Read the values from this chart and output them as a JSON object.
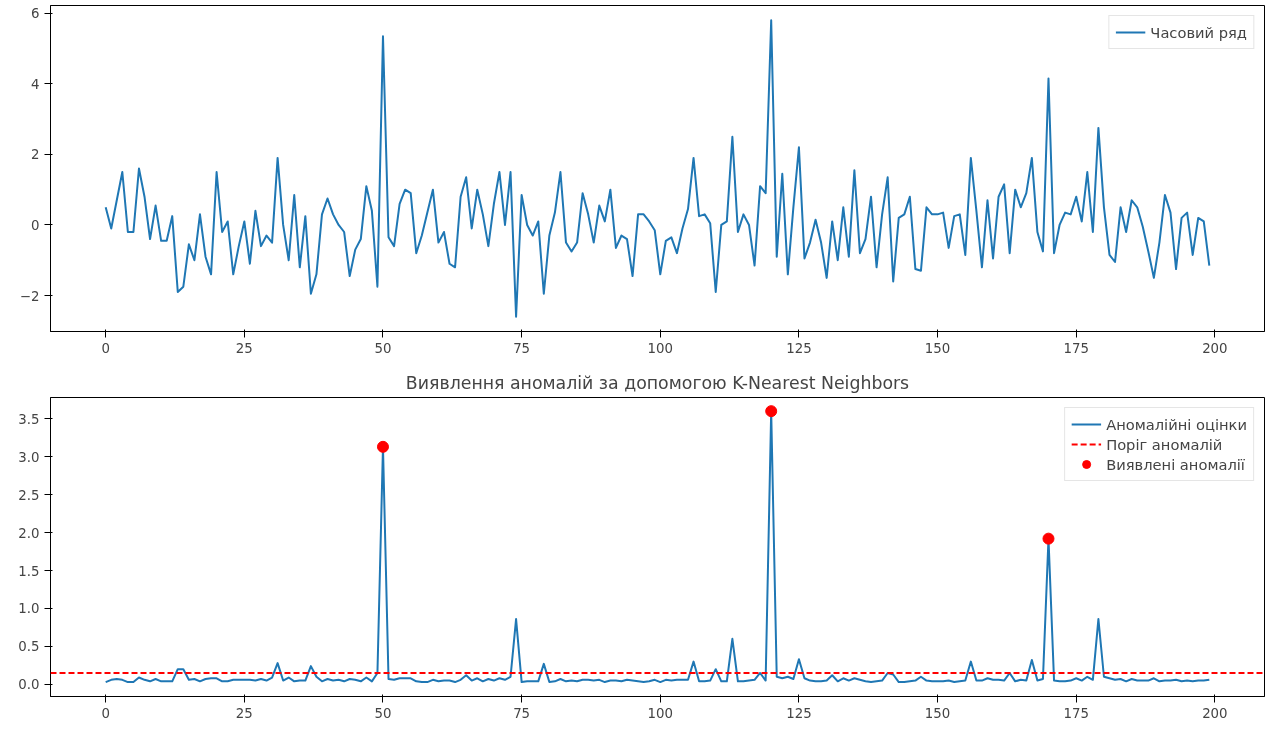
{
  "chart_data": [
    {
      "type": "line",
      "legend": "top right",
      "grid": false,
      "x": [
        0,
        1,
        2,
        3,
        4,
        5,
        6,
        7,
        8,
        9,
        10,
        11,
        12,
        13,
        14,
        15,
        16,
        17,
        18,
        19,
        20,
        21,
        22,
        23,
        24,
        25,
        26,
        27,
        28,
        29,
        30,
        31,
        32,
        33,
        34,
        35,
        36,
        37,
        38,
        39,
        40,
        41,
        42,
        43,
        44,
        45,
        46,
        47,
        48,
        49,
        50,
        51,
        52,
        53,
        54,
        55,
        56,
        57,
        58,
        59,
        60,
        61,
        62,
        63,
        64,
        65,
        66,
        67,
        68,
        69,
        70,
        71,
        72,
        73,
        74,
        75,
        76,
        77,
        78,
        79,
        80,
        81,
        82,
        83,
        84,
        85,
        86,
        87,
        88,
        89,
        90,
        91,
        92,
        93,
        94,
        95,
        96,
        97,
        98,
        99,
        100,
        101,
        102,
        103,
        104,
        105,
        106,
        107,
        108,
        109,
        110,
        111,
        112,
        113,
        114,
        115,
        116,
        117,
        118,
        119,
        120,
        121,
        122,
        123,
        124,
        125,
        126,
        127,
        128,
        129,
        130,
        131,
        132,
        133,
        134,
        135,
        136,
        137,
        138,
        139,
        140,
        141,
        142,
        143,
        144,
        145,
        146,
        147,
        148,
        149,
        150,
        151,
        152,
        153,
        154,
        155,
        156,
        157,
        158,
        159,
        160,
        161,
        162,
        163,
        164,
        165,
        166,
        167,
        168,
        169,
        170,
        171,
        172,
        173,
        174,
        175,
        176,
        177,
        178,
        179,
        180,
        181,
        182,
        183,
        184,
        185,
        186,
        187,
        188,
        189,
        190,
        191,
        192,
        193,
        194,
        195,
        196,
        197,
        198,
        199
      ],
      "series": [
        {
          "name": "Часовий ряд",
          "color": "#1f77b4",
          "values": [
            0.5,
            -0.1,
            0.7,
            1.5,
            -0.2,
            -0.2,
            1.6,
            0.8,
            -0.4,
            0.55,
            -0.45,
            -0.45,
            0.25,
            -1.9,
            -1.75,
            -0.55,
            -1.0,
            0.3,
            -0.9,
            -1.4,
            1.5,
            -0.2,
            0.1,
            -1.4,
            -0.6,
            0.1,
            -1.1,
            0.4,
            -0.6,
            -0.3,
            -0.5,
            1.9,
            0.0,
            -1.0,
            0.85,
            -1.2,
            0.25,
            -1.95,
            -1.4,
            0.3,
            0.75,
            0.3,
            0.0,
            -0.2,
            -1.45,
            -0.7,
            -0.4,
            1.1,
            0.4,
            -1.75,
            5.35,
            -0.35,
            -0.6,
            0.6,
            1.0,
            0.9,
            -0.8,
            -0.3,
            0.35,
            1.0,
            -0.5,
            -0.2,
            -1.1,
            -1.2,
            0.8,
            1.35,
            -0.1,
            1.0,
            0.3,
            -0.6,
            0.6,
            1.5,
            0.0,
            1.5,
            -2.6,
            0.85,
            0.0,
            -0.3,
            0.1,
            -1.95,
            -0.3,
            0.35,
            1.5,
            -0.5,
            -0.75,
            -0.5,
            0.9,
            0.3,
            -0.5,
            0.55,
            0.1,
            1.0,
            -0.65,
            -0.3,
            -0.4,
            -1.45,
            0.3,
            0.3,
            0.1,
            -0.15,
            -1.4,
            -0.45,
            -0.35,
            -0.8,
            -0.1,
            0.45,
            1.9,
            0.25,
            0.3,
            0.05,
            -1.9,
            0.0,
            0.1,
            2.5,
            -0.2,
            0.3,
            0.0,
            -1.15,
            1.1,
            0.9,
            5.8,
            -0.9,
            1.45,
            -1.4,
            0.5,
            2.2,
            -0.95,
            -0.5,
            0.15,
            -0.5,
            -1.5,
            0.1,
            -1.0,
            0.5,
            -0.9,
            1.55,
            -0.8,
            -0.4,
            0.8,
            -1.2,
            0.3,
            1.35,
            -1.6,
            0.2,
            0.3,
            0.8,
            -1.25,
            -1.3,
            0.5,
            0.3,
            0.3,
            0.35,
            -0.65,
            0.25,
            0.3,
            -0.85,
            1.9,
            0.4,
            -1.2,
            0.7,
            -0.95,
            0.8,
            1.15,
            -0.8,
            1.0,
            0.5,
            0.9,
            1.9,
            -0.2,
            -0.75,
            4.15,
            -0.8,
            0.0,
            0.35,
            0.3,
            0.8,
            0.1,
            1.5,
            -0.2,
            2.75,
            0.5,
            -0.85,
            -1.05,
            0.5,
            -0.2,
            0.7,
            0.5,
            -0.05,
            -0.75,
            -1.5,
            -0.5,
            0.85,
            0.35,
            -1.25,
            0.2,
            0.35,
            -0.85,
            0.2,
            0.1,
            -1.15
          ]
        }
      ],
      "xlim": [
        -9.95,
        208.95
      ],
      "xticks": [
        0,
        25,
        50,
        75,
        100,
        125,
        150,
        175,
        200
      ],
      "ylim": [
        -3.02,
        6.22
      ],
      "yticks": [
        -2,
        0,
        2,
        4,
        6
      ]
    },
    {
      "type": "line",
      "title": "Виявлення аномалій за допомогою K-Nearest Neighbors",
      "legend": "top right",
      "grid": false,
      "x": [
        0,
        1,
        2,
        3,
        4,
        5,
        6,
        7,
        8,
        9,
        10,
        11,
        12,
        13,
        14,
        15,
        16,
        17,
        18,
        19,
        20,
        21,
        22,
        23,
        24,
        25,
        26,
        27,
        28,
        29,
        30,
        31,
        32,
        33,
        34,
        35,
        36,
        37,
        38,
        39,
        40,
        41,
        42,
        43,
        44,
        45,
        46,
        47,
        48,
        49,
        50,
        51,
        52,
        53,
        54,
        55,
        56,
        57,
        58,
        59,
        60,
        61,
        62,
        63,
        64,
        65,
        66,
        67,
        68,
        69,
        70,
        71,
        72,
        73,
        74,
        75,
        76,
        77,
        78,
        79,
        80,
        81,
        82,
        83,
        84,
        85,
        86,
        87,
        88,
        89,
        90,
        91,
        92,
        93,
        94,
        95,
        96,
        97,
        98,
        99,
        100,
        101,
        102,
        103,
        104,
        105,
        106,
        107,
        108,
        109,
        110,
        111,
        112,
        113,
        114,
        115,
        116,
        117,
        118,
        119,
        120,
        121,
        122,
        123,
        124,
        125,
        126,
        127,
        128,
        129,
        130,
        131,
        132,
        133,
        134,
        135,
        136,
        137,
        138,
        139,
        140,
        141,
        142,
        143,
        144,
        145,
        146,
        147,
        148,
        149,
        150,
        151,
        152,
        153,
        154,
        155,
        156,
        157,
        158,
        159,
        160,
        161,
        162,
        163,
        164,
        165,
        166,
        167,
        168,
        169,
        170,
        171,
        172,
        173,
        174,
        175,
        176,
        177,
        178,
        179,
        180,
        181,
        182,
        183,
        184,
        185,
        186,
        187,
        188,
        189,
        190,
        191,
        192,
        193,
        194,
        195,
        196,
        197,
        198,
        199
      ],
      "series": [
        {
          "name": "Аномалійні оцінки",
          "color": "#1f77b4",
          "values": [
            0.03,
            0.06,
            0.07,
            0.06,
            0.03,
            0.03,
            0.09,
            0.06,
            0.04,
            0.07,
            0.04,
            0.04,
            0.04,
            0.2,
            0.2,
            0.06,
            0.07,
            0.04,
            0.07,
            0.08,
            0.08,
            0.04,
            0.04,
            0.06,
            0.06,
            0.06,
            0.06,
            0.05,
            0.07,
            0.05,
            0.09,
            0.28,
            0.05,
            0.09,
            0.04,
            0.05,
            0.05,
            0.24,
            0.1,
            0.04,
            0.07,
            0.05,
            0.06,
            0.04,
            0.07,
            0.06,
            0.04,
            0.09,
            0.04,
            0.15,
            3.13,
            0.07,
            0.06,
            0.08,
            0.08,
            0.08,
            0.04,
            0.03,
            0.03,
            0.06,
            0.04,
            0.05,
            0.05,
            0.03,
            0.06,
            0.12,
            0.05,
            0.08,
            0.04,
            0.07,
            0.05,
            0.08,
            0.06,
            0.1,
            0.86,
            0.03,
            0.04,
            0.04,
            0.04,
            0.27,
            0.03,
            0.04,
            0.07,
            0.04,
            0.05,
            0.04,
            0.06,
            0.06,
            0.05,
            0.06,
            0.03,
            0.05,
            0.05,
            0.04,
            0.06,
            0.05,
            0.04,
            0.03,
            0.04,
            0.06,
            0.03,
            0.06,
            0.05,
            0.06,
            0.06,
            0.06,
            0.3,
            0.04,
            0.04,
            0.05,
            0.2,
            0.04,
            0.04,
            0.6,
            0.04,
            0.04,
            0.05,
            0.06,
            0.15,
            0.05,
            3.6,
            0.1,
            0.08,
            0.1,
            0.07,
            0.33,
            0.08,
            0.05,
            0.04,
            0.04,
            0.05,
            0.12,
            0.04,
            0.08,
            0.05,
            0.08,
            0.06,
            0.04,
            0.03,
            0.04,
            0.05,
            0.15,
            0.13,
            0.03,
            0.03,
            0.04,
            0.05,
            0.1,
            0.05,
            0.04,
            0.04,
            0.04,
            0.05,
            0.03,
            0.04,
            0.05,
            0.3,
            0.05,
            0.05,
            0.08,
            0.06,
            0.06,
            0.05,
            0.15,
            0.04,
            0.06,
            0.05,
            0.32,
            0.05,
            0.07,
            1.92,
            0.05,
            0.04,
            0.04,
            0.05,
            0.08,
            0.05,
            0.1,
            0.06,
            0.86,
            0.1,
            0.08,
            0.06,
            0.07,
            0.04,
            0.07,
            0.05,
            0.05,
            0.05,
            0.08,
            0.04,
            0.05,
            0.05,
            0.06,
            0.04,
            0.05,
            0.04,
            0.05,
            0.05,
            0.06
          ]
        },
        {
          "type": "scatter",
          "name": "Виявлені аномалії",
          "color": "#ff0000",
          "marker": "circle",
          "x": [
            50,
            120,
            170
          ],
          "values": [
            3.13,
            3.6,
            1.92
          ]
        }
      ],
      "ref_lines": [
        {
          "axis": "y",
          "value": 0.15,
          "label": "Поріг аномалій",
          "color": "#ff0000",
          "line_style": "dashed"
        }
      ],
      "xlim": [
        -9.95,
        208.95
      ],
      "xticks": [
        0,
        25,
        50,
        75,
        100,
        125,
        150,
        175,
        200
      ],
      "ylim": [
        -0.16,
        3.78
      ],
      "yticks": [
        {
          "value": 0,
          "label": "0.0"
        },
        0.5,
        {
          "value": 1,
          "label": "1.0"
        },
        1.5,
        {
          "value": 2,
          "label": "2.0"
        },
        2.5,
        {
          "value": 3,
          "label": "3.0"
        },
        3.5
      ]
    }
  ]
}
